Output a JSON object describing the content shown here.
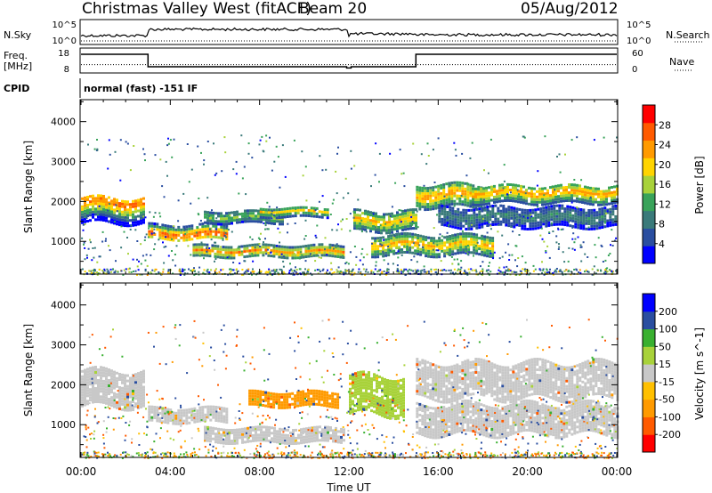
{
  "header": {
    "station": "Christmas Valley West (fitACF)",
    "beam": "Beam 20",
    "date": "05/Aug/2012"
  },
  "strips": {
    "nsky_label": "N.Sky",
    "nsky_ticks": [
      "10^5",
      "10^0"
    ],
    "nsearch_label": "N.Search",
    "nsearch_ticks": [
      "10^5",
      "10^0"
    ],
    "freq_label_1": "Freq.",
    "freq_label_2": "[MHz]",
    "freq_ticks": [
      "18",
      "8"
    ],
    "nave_label": "Nave",
    "nave_ticks": [
      "60",
      "0"
    ],
    "cpid_label": "CPID",
    "cpid_value": "normal (fast) -151 IF",
    "freq_steps": [
      {
        "t": 0.0,
        "v": 15.5
      },
      {
        "t": 3.0,
        "v": 10.5
      },
      {
        "t": 11.9,
        "v": 10.0
      },
      {
        "t": 12.1,
        "v": 10.5
      },
      {
        "t": 15.0,
        "v": 15.5
      },
      {
        "t": 24.0,
        "v": 15.5
      }
    ],
    "nave_level": 20
  },
  "chart_data": [
    {
      "type": "heatmap",
      "title": "",
      "xlabel": "Time UT",
      "ylabel": "Slant Range [km]",
      "x_ticks": [
        "00:00",
        "04:00",
        "08:00",
        "12:00",
        "16:00",
        "20:00",
        "00:00"
      ],
      "xlim": [
        0,
        24
      ],
      "y_ticks": [
        "1000",
        "2000",
        "3000",
        "4000"
      ],
      "ylim": [
        180,
        4550
      ],
      "colorbar_label": "Power [dB]",
      "colorbar_ticks": [
        "28",
        "24",
        "20",
        "16",
        "12",
        "8",
        "4"
      ],
      "colorbar_range": [
        0,
        32
      ],
      "colors": [
        "#0000ff",
        "#2a4ea0",
        "#3a7a7a",
        "#39a35a",
        "#a8d23a",
        "#ffd400",
        "#ff9a00",
        "#ff5a00",
        "#ff0000"
      ],
      "bands": [
        {
          "t0": 0.0,
          "t1": 2.8,
          "r0": 1500,
          "r1": 2150,
          "peak": 2000,
          "power": 26
        },
        {
          "t0": 3.0,
          "t1": 6.5,
          "r0": 1100,
          "r1": 1500,
          "peak": 1200,
          "power": 28
        },
        {
          "t0": 5.0,
          "t1": 11.8,
          "r0": 650,
          "r1": 950,
          "peak": 780,
          "power": 24
        },
        {
          "t0": 5.5,
          "t1": 9.0,
          "r0": 1500,
          "r1": 1800,
          "peak": 1650,
          "power": 16
        },
        {
          "t0": 8.0,
          "t1": 11.0,
          "r0": 1650,
          "r1": 1900,
          "peak": 1780,
          "power": 20
        },
        {
          "t0": 12.2,
          "t1": 15.0,
          "r0": 1300,
          "r1": 1800,
          "peak": 1550,
          "power": 22
        },
        {
          "t0": 13.0,
          "t1": 18.5,
          "r0": 700,
          "r1": 1200,
          "peak": 950,
          "power": 22
        },
        {
          "t0": 15.0,
          "t1": 18.0,
          "r0": 1900,
          "r1": 2500,
          "peak": 2200,
          "power": 24
        },
        {
          "t0": 17.5,
          "t1": 24.0,
          "r0": 2000,
          "r1": 2450,
          "peak": 2250,
          "power": 24
        },
        {
          "t0": 16.0,
          "t1": 24.0,
          "r0": 1400,
          "r1": 1900,
          "peak": 1650,
          "power": 10
        }
      ]
    },
    {
      "type": "heatmap",
      "title": "",
      "xlabel": "Time UT",
      "ylabel": "Slant Range [km]",
      "x_ticks": [
        "00:00",
        "04:00",
        "08:00",
        "12:00",
        "16:00",
        "20:00",
        "00:00"
      ],
      "xlim": [
        0,
        24
      ],
      "y_ticks": [
        "1000",
        "2000",
        "3000",
        "4000"
      ],
      "ylim": [
        180,
        4550
      ],
      "colorbar_label": "Velocity [m s^-1]",
      "colorbar_ticks": [
        "200",
        "100",
        "50",
        "15",
        "-15",
        "-50",
        "-100",
        "-200"
      ],
      "colorbar_range": [
        -250,
        250
      ],
      "colors": [
        "#ff0000",
        "#ff5a00",
        "#ff9a00",
        "#ffc000",
        "#c8c8c8",
        "#a8d23a",
        "#39b030",
        "#2a4ea0",
        "#0000ff"
      ],
      "bands": [
        {
          "t0": 0.0,
          "t1": 2.8,
          "r0": 1500,
          "r1": 2400,
          "peak": 1950,
          "vel": 0
        },
        {
          "t0": 3.0,
          "t1": 6.5,
          "r0": 1100,
          "r1": 1500,
          "peak": 1250,
          "vel": 0
        },
        {
          "t0": 5.5,
          "t1": 11.8,
          "r0": 600,
          "r1": 950,
          "peak": 780,
          "vel": 0
        },
        {
          "t0": 7.5,
          "t1": 11.5,
          "r0": 1500,
          "r1": 1900,
          "peak": 1700,
          "vel": -60
        },
        {
          "t0": 12.0,
          "t1": 14.5,
          "r0": 1300,
          "r1": 2300,
          "peak": 1800,
          "vel": 40
        },
        {
          "t0": 15.0,
          "t1": 24.0,
          "r0": 1700,
          "r1": 2600,
          "peak": 2200,
          "vel": 0
        },
        {
          "t0": 15.0,
          "t1": 24.0,
          "r0": 800,
          "r1": 1600,
          "peak": 1200,
          "vel": 0
        }
      ]
    }
  ]
}
